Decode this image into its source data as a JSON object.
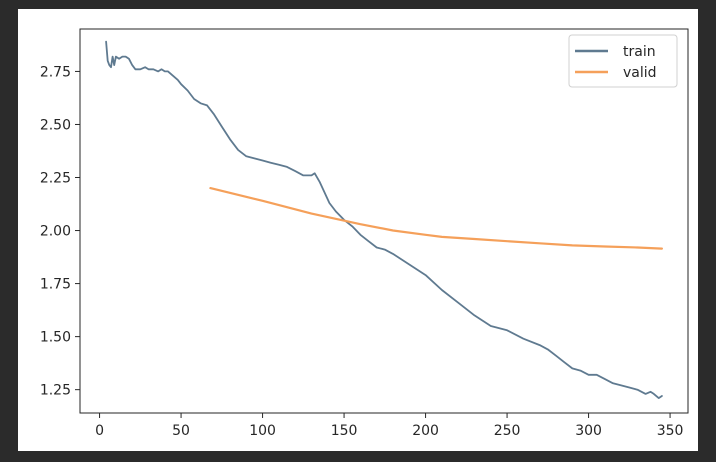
{
  "chart_data": {
    "type": "line",
    "title": "",
    "xlabel": "",
    "ylabel": "",
    "xlim": [
      -12,
      361
    ],
    "ylim": [
      1.14,
      2.95
    ],
    "x_ticks": [
      0,
      50,
      100,
      150,
      200,
      250,
      300,
      350
    ],
    "y_ticks": [
      1.25,
      1.5,
      1.75,
      2.0,
      2.25,
      2.5,
      2.75
    ],
    "x_tick_labels": [
      "0",
      "50",
      "100",
      "150",
      "200",
      "250",
      "300",
      "350"
    ],
    "y_tick_labels": [
      "1.25",
      "1.50",
      "1.75",
      "2.00",
      "2.25",
      "2.50",
      "2.75"
    ],
    "grid": false,
    "legend_position": "top-right",
    "series": [
      {
        "name": "train",
        "color": "#5f7a90",
        "x": [
          4,
          5,
          6,
          7,
          8,
          9,
          10,
          12,
          14,
          16,
          18,
          20,
          22,
          25,
          28,
          30,
          33,
          36,
          38,
          40,
          42,
          45,
          48,
          50,
          54,
          58,
          62,
          66,
          70,
          75,
          80,
          85,
          90,
          95,
          100,
          105,
          110,
          115,
          120,
          125,
          128,
          130,
          132,
          135,
          138,
          141,
          145,
          150,
          155,
          160,
          165,
          170,
          175,
          180,
          190,
          200,
          210,
          220,
          230,
          240,
          250,
          260,
          270,
          275,
          280,
          285,
          290,
          295,
          300,
          305,
          310,
          315,
          320,
          325,
          330,
          335,
          338,
          340,
          343,
          345
        ],
        "y": [
          2.89,
          2.8,
          2.78,
          2.77,
          2.82,
          2.78,
          2.82,
          2.81,
          2.82,
          2.82,
          2.81,
          2.78,
          2.76,
          2.76,
          2.77,
          2.76,
          2.76,
          2.75,
          2.76,
          2.75,
          2.75,
          2.73,
          2.71,
          2.69,
          2.66,
          2.62,
          2.6,
          2.59,
          2.55,
          2.49,
          2.43,
          2.38,
          2.35,
          2.34,
          2.33,
          2.32,
          2.31,
          2.3,
          2.28,
          2.26,
          2.26,
          2.26,
          2.27,
          2.23,
          2.18,
          2.13,
          2.09,
          2.05,
          2.02,
          1.98,
          1.95,
          1.92,
          1.91,
          1.89,
          1.84,
          1.79,
          1.72,
          1.66,
          1.6,
          1.55,
          1.53,
          1.49,
          1.46,
          1.44,
          1.41,
          1.38,
          1.35,
          1.34,
          1.32,
          1.32,
          1.3,
          1.28,
          1.27,
          1.26,
          1.25,
          1.23,
          1.24,
          1.23,
          1.21,
          1.22
        ]
      },
      {
        "name": "valid",
        "color": "#f5a05a",
        "x": [
          68,
          100,
          130,
          160,
          180,
          200,
          210,
          230,
          250,
          270,
          290,
          310,
          330,
          345
        ],
        "y": [
          2.2,
          2.14,
          2.08,
          2.03,
          2.0,
          1.98,
          1.97,
          1.96,
          1.95,
          1.94,
          1.93,
          1.925,
          1.92,
          1.915
        ]
      }
    ]
  }
}
